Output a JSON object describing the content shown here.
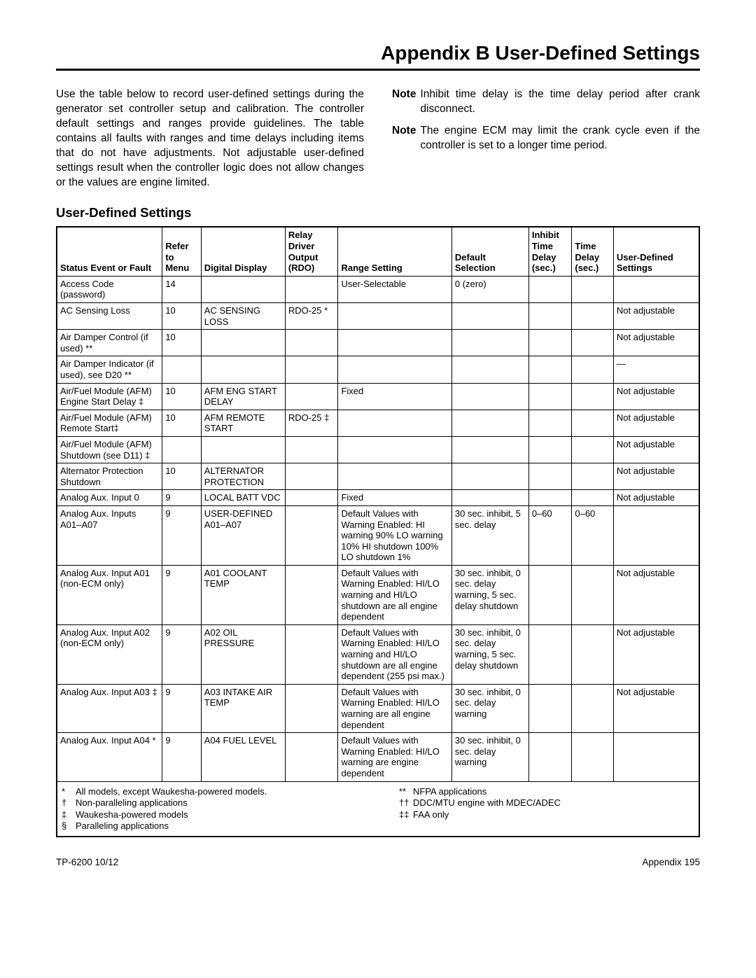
{
  "title": "Appendix B  User-Defined Settings",
  "intro": "Use the table below to record user-defined settings during the generator set controller setup and calibration. The controller default settings and ranges provide guidelines. The table contains all faults with ranges and time delays including items that do not have adjustments. Not adjustable user-defined settings result when the controller logic does not allow changes or the values are engine limited.",
  "notes": [
    {
      "label": "Note",
      "body": "Inhibit time delay is the time delay period after crank disconnect."
    },
    {
      "label": "Note",
      "body": "The engine ECM may limit the crank cycle even if the controller is set to a longer time period."
    }
  ],
  "section_title": "User-Defined Settings",
  "headers": {
    "status": "Status Event or Fault",
    "refer": "Refer to Menu",
    "display": "Digital Display",
    "rdo": "Relay Driver Output (RDO)",
    "range": "Range Setting",
    "default": "Default Selection",
    "inhibit": "Inhibit Time Delay (sec.)",
    "time": "Time Delay (sec.)",
    "user": "User-Defined Settings"
  },
  "rows": [
    {
      "status": "Access Code (password)",
      "menu": "14",
      "disp": "",
      "rdo": "",
      "range": "User-Selectable",
      "default": "0 (zero)",
      "inhibit": "",
      "time": "",
      "user": ""
    },
    {
      "status": "AC Sensing Loss",
      "menu": "10",
      "disp": "AC SENSING LOSS",
      "rdo": "RDO-25 *",
      "range": "",
      "default": "",
      "inhibit": "",
      "time": "",
      "user": "Not adjustable"
    },
    {
      "status": "Air Damper Control (if used) **",
      "menu": "10",
      "disp": "",
      "rdo": "",
      "range": "",
      "default": "",
      "inhibit": "",
      "time": "",
      "user": "Not adjustable"
    },
    {
      "status": "Air Damper Indicator (if used), see D20 **",
      "menu": "",
      "disp": "",
      "rdo": "",
      "range": "",
      "default": "",
      "inhibit": "",
      "time": "",
      "user": "—"
    },
    {
      "status": "Air/Fuel Module (AFM) Engine Start Delay ‡",
      "menu": "10",
      "disp": "AFM ENG START DELAY",
      "rdo": "",
      "range": "Fixed",
      "default": "",
      "inhibit": "",
      "time": "",
      "user": "Not adjustable"
    },
    {
      "status": "Air/Fuel Module (AFM) Remote Start‡",
      "menu": "10",
      "disp": "AFM REMOTE START",
      "rdo": "RDO-25 ‡",
      "range": "",
      "default": "",
      "inhibit": "",
      "time": "",
      "user": "Not adjustable"
    },
    {
      "status": "Air/Fuel Module (AFM) Shutdown (see D11) ‡",
      "menu": "",
      "disp": "",
      "rdo": "",
      "range": "",
      "default": "",
      "inhibit": "",
      "time": "",
      "user": "Not adjustable"
    },
    {
      "status": "Alternator Protection Shutdown",
      "menu": "10",
      "disp": "ALTERNATOR PROTECTION",
      "rdo": "",
      "range": "",
      "default": "",
      "inhibit": "",
      "time": "",
      "user": "Not adjustable"
    },
    {
      "status": "Analog Aux. Input 0",
      "menu": "9",
      "disp": "LOCAL BATT VDC",
      "rdo": "",
      "range": "Fixed",
      "default": "",
      "inhibit": "",
      "time": "",
      "user": "Not adjustable"
    },
    {
      "status": "Analog Aux. Inputs A01–A07",
      "menu": "9",
      "disp": "USER-DEFINED A01–A07",
      "rdo": "",
      "range": "Default Values with Warning Enabled: HI warning 90% LO warning 10% HI shutdown 100% LO shutdown 1%",
      "default": "30 sec. inhibit, 5 sec. delay",
      "inhibit": "0–60",
      "time": "0–60",
      "user": ""
    },
    {
      "status": "Analog Aux. Input A01 (non-ECM only)",
      "menu": "9",
      "disp": "A01 COOLANT TEMP",
      "rdo": "",
      "range": "Default Values with Warning Enabled: HI/LO warning and HI/LO shutdown are all engine dependent",
      "default": "30 sec. inhibit, 0 sec. delay warning, 5 sec. delay shutdown",
      "inhibit": "",
      "time": "",
      "user": "Not adjustable"
    },
    {
      "status": "Analog Aux. Input A02 (non-ECM only)",
      "menu": "9",
      "disp": "A02 OIL PRESSURE",
      "rdo": "",
      "range": "Default Values with Warning Enabled: HI/LO warning and HI/LO shutdown are all engine dependent (255 psi max.)",
      "default": "30 sec. inhibit, 0 sec. delay warning, 5 sec. delay shutdown",
      "inhibit": "",
      "time": "",
      "user": "Not adjustable"
    },
    {
      "status": "Analog Aux. Input A03 ‡",
      "menu": "9",
      "disp": "A03 INTAKE AIR TEMP",
      "rdo": "",
      "range": "Default Values with Warning Enabled: HI/LO warning are all engine dependent",
      "default": "30 sec. inhibit, 0 sec. delay warning",
      "inhibit": "",
      "time": "",
      "user": "Not adjustable"
    },
    {
      "status": "Analog Aux. Input A04  *",
      "menu": "9",
      "disp": "A04 FUEL LEVEL",
      "rdo": "",
      "range": "Default Values with Warning Enabled: HI/LO warning are engine dependent",
      "default": "30 sec. inhibit, 0 sec. delay warning",
      "inhibit": "",
      "time": "",
      "user": ""
    }
  ],
  "footnotes": {
    "left": [
      {
        "sym": "*",
        "text": "All models, except Waukesha-powered models."
      },
      {
        "sym": "†",
        "text": "Non-paralleling applications"
      },
      {
        "sym": "‡",
        "text": "Waukesha-powered models"
      },
      {
        "sym": "§",
        "text": "Paralleling applications"
      }
    ],
    "right": [
      {
        "sym": "**",
        "text": "NFPA applications"
      },
      {
        "sym": "††",
        "text": "DDC/MTU engine with MDEC/ADEC"
      },
      {
        "sym": "‡‡",
        "text": "FAA only"
      }
    ]
  },
  "footer": {
    "left": "TP-6200  10/12",
    "right": "Appendix   195"
  }
}
